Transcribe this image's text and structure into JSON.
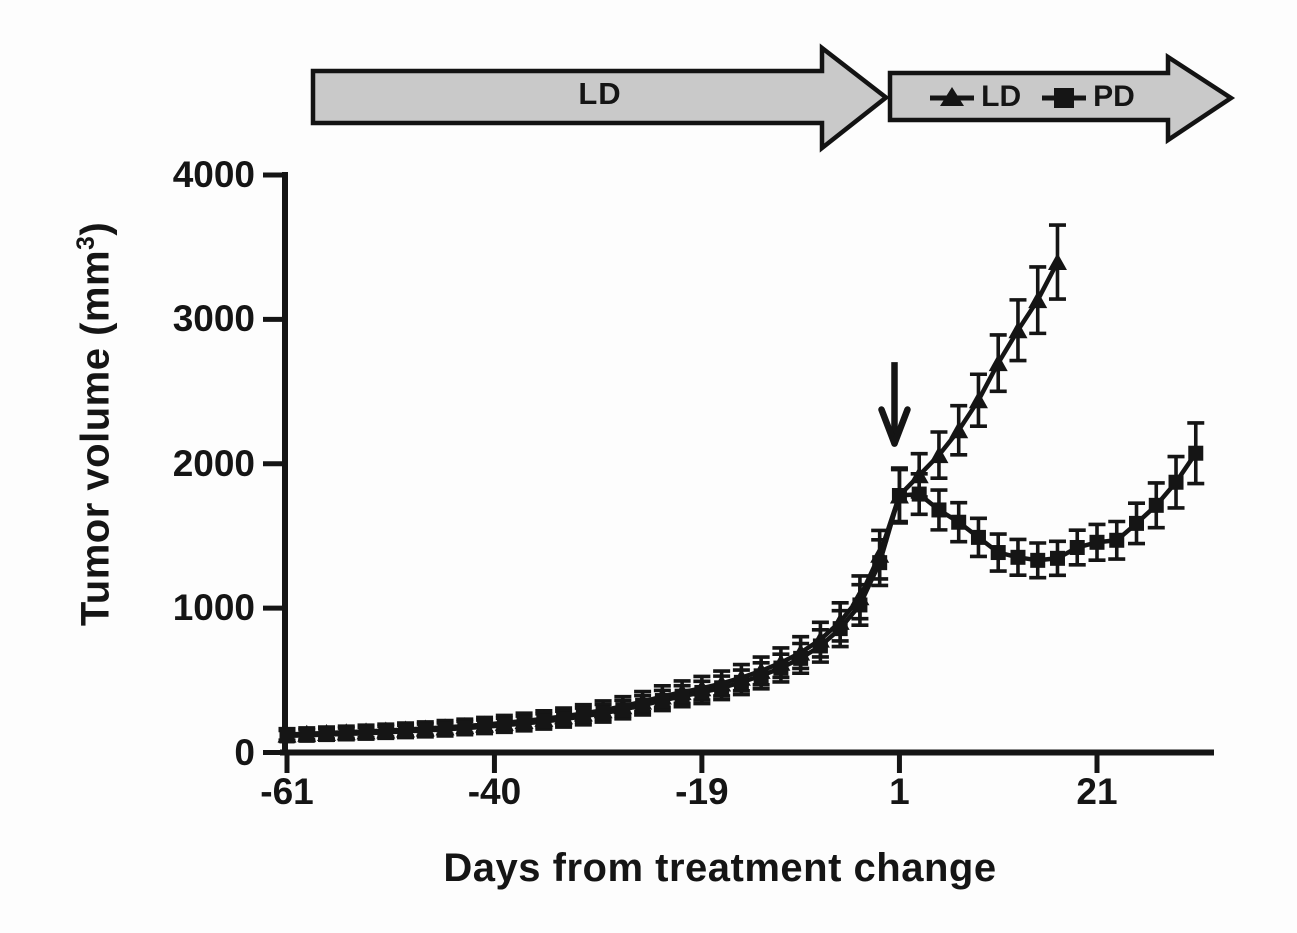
{
  "figure": {
    "background": "#fdfdfd",
    "ink_color": "#151515",
    "arrow_fill": "#c9c9c9",
    "arrow_border": "#131313"
  },
  "timeline": {
    "phase1": {
      "label": "LD"
    },
    "phase2": {
      "legend": [
        {
          "marker": "triangle",
          "label": "LD"
        },
        {
          "marker": "square",
          "label": "PD"
        }
      ]
    }
  },
  "chart_data": {
    "type": "line",
    "title": "",
    "xlabel": "Days from treatment change",
    "ylabel": "Tumor volume (mm³)",
    "ylabel_parts": {
      "main": "Tumor volume (mm",
      "sup": "3",
      "close": ")"
    },
    "xlim": [
      -63,
      33
    ],
    "ylim": [
      0,
      4000
    ],
    "x_ticks": [
      -61,
      -40,
      -19,
      1,
      21
    ],
    "y_ticks": [
      0,
      1000,
      2000,
      3000,
      4000
    ],
    "grid": false,
    "legend_position": "inside-top-timeline-arrow",
    "annotation": {
      "type": "down-arrow",
      "x": 0.5,
      "y_top": 2704,
      "y_tip": 2140,
      "meaning": "treatment change"
    },
    "series": [
      {
        "name": "LD",
        "marker": "triangle",
        "color": "#151515",
        "x": [
          -61,
          -59,
          -57,
          -55,
          -53,
          -51,
          -49,
          -47,
          -45,
          -43,
          -41,
          -39,
          -37,
          -35,
          -33,
          -31,
          -29,
          -27,
          -25,
          -23,
          -21,
          -19,
          -17,
          -15,
          -13,
          -11,
          -9,
          -7,
          -5,
          -3,
          -1,
          1,
          3,
          5,
          7,
          9,
          11,
          13,
          15,
          17
        ],
        "y": [
          125,
          130,
          135,
          140,
          146,
          152,
          159,
          166,
          174,
          183,
          193,
          205,
          218,
          233,
          250,
          270,
          293,
          320,
          352,
          388,
          418,
          445,
          478,
          518,
          565,
          622,
          692,
          782,
          905,
          1075,
          1370,
          1780,
          1920,
          2060,
          2232,
          2440,
          2697,
          2925,
          3133,
          3397
        ],
        "err": [
          40,
          40,
          41,
          42,
          43,
          44,
          45,
          46,
          47,
          48,
          50,
          52,
          54,
          56,
          58,
          61,
          64,
          67,
          70,
          74,
          78,
          82,
          86,
          91,
          96,
          102,
          110,
          120,
          132,
          148,
          168,
          190,
          150,
          160,
          170,
          180,
          195,
          210,
          230,
          256
        ]
      },
      {
        "name": "PD",
        "marker": "square",
        "color": "#151515",
        "x": [
          -61,
          -59,
          -57,
          -55,
          -53,
          -51,
          -49,
          -47,
          -45,
          -43,
          -41,
          -39,
          -37,
          -35,
          -33,
          -31,
          -29,
          -27,
          -25,
          -23,
          -21,
          -19,
          -17,
          -15,
          -13,
          -11,
          -9,
          -7,
          -5,
          -3,
          -1,
          1,
          3,
          5,
          7,
          9,
          11,
          13,
          15,
          17,
          19,
          21,
          23,
          25,
          27,
          29,
          31
        ],
        "y": [
          115,
          119,
          124,
          129,
          134,
          140,
          146,
          153,
          160,
          169,
          178,
          189,
          201,
          215,
          231,
          250,
          272,
          297,
          327,
          360,
          390,
          416,
          448,
          486,
          531,
          585,
          652,
          738,
          858,
          1022,
          1315,
          1780,
          1790,
          1680,
          1595,
          1490,
          1385,
          1352,
          1331,
          1345,
          1420,
          1456,
          1470,
          1587,
          1712,
          1872,
          2073
        ],
        "err": [
          38,
          38,
          39,
          40,
          41,
          42,
          43,
          44,
          45,
          46,
          47,
          49,
          51,
          53,
          55,
          58,
          61,
          64,
          67,
          70,
          73,
          77,
          81,
          85,
          90,
          96,
          103,
          112,
          124,
          140,
          158,
          180,
          140,
          138,
          135,
          132,
          128,
          124,
          120,
          118,
          120,
          124,
          130,
          140,
          155,
          178,
          210
        ]
      }
    ]
  }
}
